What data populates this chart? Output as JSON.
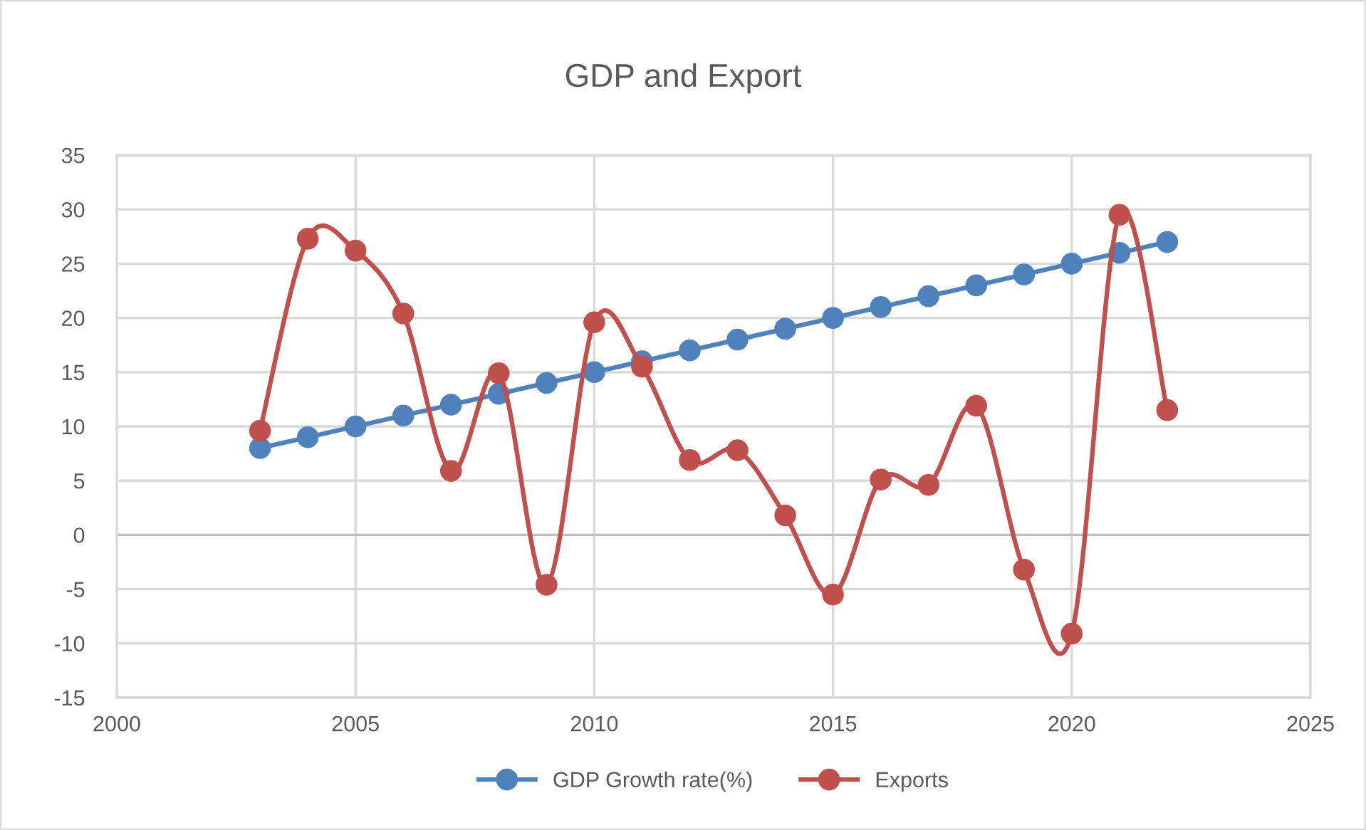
{
  "chart_data": {
    "type": "line",
    "title": "GDP and Export",
    "x": [
      2003,
      2004,
      2005,
      2006,
      2007,
      2008,
      2009,
      2010,
      2011,
      2012,
      2013,
      2014,
      2015,
      2016,
      2017,
      2018,
      2019,
      2020,
      2021,
      2022
    ],
    "series": [
      {
        "name": "GDP Growth rate(%)",
        "color": "#4f81bd",
        "values": [
          8,
          9,
          10,
          11,
          12,
          13,
          14,
          15,
          16,
          17,
          18,
          19,
          20,
          21,
          22,
          23,
          24,
          25,
          26,
          27
        ]
      },
      {
        "name": "Exports",
        "color": "#c0504d",
        "values": [
          9.6,
          27.3,
          26.2,
          20.4,
          5.9,
          14.9,
          -4.6,
          19.6,
          15.5,
          6.9,
          7.8,
          1.8,
          -5.5,
          5.1,
          4.6,
          11.9,
          -3.2,
          -9.1,
          29.5,
          11.5
        ]
      }
    ],
    "xlim": [
      2000,
      2025
    ],
    "xticks": [
      2000,
      2005,
      2010,
      2015,
      2020,
      2025
    ],
    "ylim": [
      -15,
      35
    ],
    "yticks": [
      -15,
      -10,
      -5,
      0,
      5,
      10,
      15,
      20,
      25,
      30,
      35
    ],
    "grid": true,
    "legend": "bottom",
    "marker": "circle",
    "line_style": "solid"
  }
}
